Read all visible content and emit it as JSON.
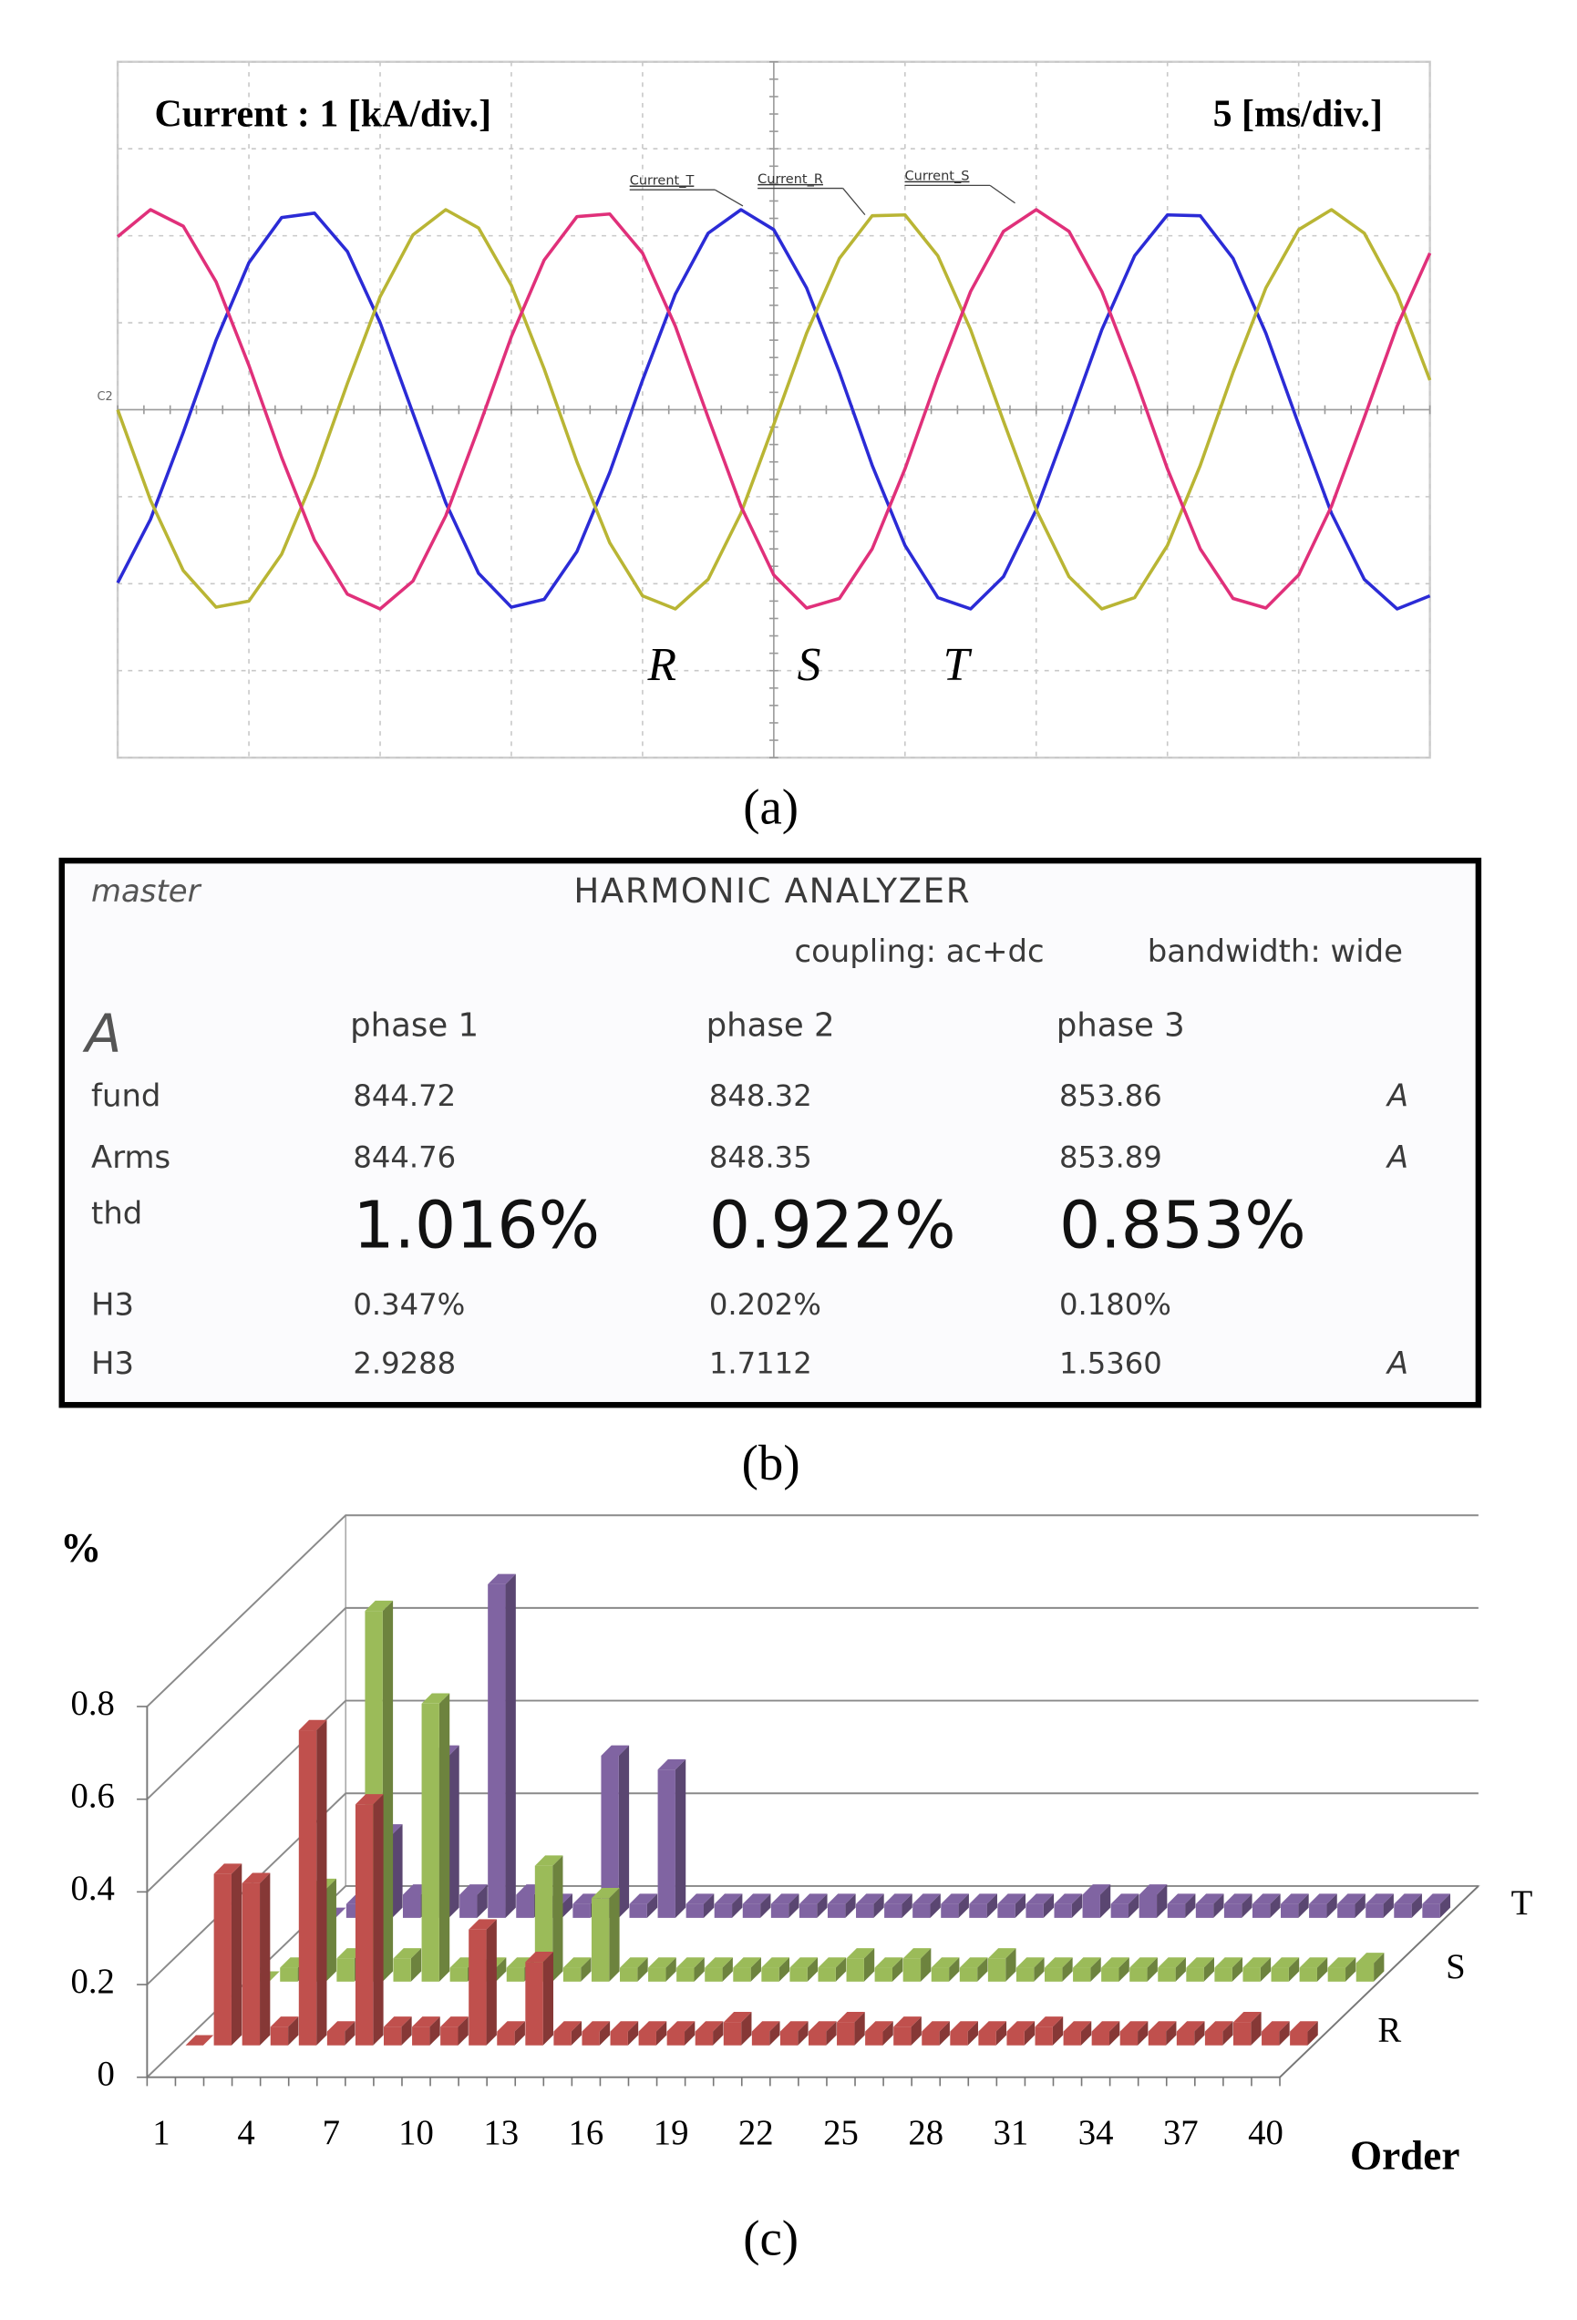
{
  "chart_data": [
    {
      "type": "line",
      "title": "Current : 1 [kA/div.]",
      "subtitle": "5 [ms/div.]",
      "channel_label": "C2",
      "annotations": [
        "R",
        "S",
        "T"
      ],
      "x": [
        0,
        1.25,
        2.5,
        3.75,
        5,
        6.25,
        7.5,
        8.75,
        10,
        11.25,
        12.5,
        13.75,
        15,
        16.25,
        17.5,
        18.75,
        20,
        21.25,
        22.5,
        23.75,
        25,
        26.25,
        27.5,
        28.75,
        30,
        31.25,
        32.5,
        33.75,
        35,
        36.25,
        37.5,
        38.75,
        40,
        41.25,
        42.5,
        43.75,
        45,
        46.25,
        47.5,
        48.75,
        50
      ],
      "series": [
        {
          "name": "Current_T",
          "color": "#2b2bd6",
          "values": [
            -1.99,
            -1.26,
            -0.26,
            0.8,
            1.69,
            2.21,
            2.26,
            1.82,
            1.0,
            -0.04,
            -1.07,
            -1.88,
            -2.27,
            -2.18,
            -1.63,
            -0.72,
            0.34,
            1.33,
            2.03,
            2.3,
            2.07,
            1.4,
            0.43,
            -0.64,
            -1.56,
            -2.16,
            -2.29,
            -1.92,
            -1.15,
            -0.13,
            0.92,
            1.77,
            2.24,
            2.23,
            1.74,
            0.88,
            -0.17,
            -1.19,
            -1.95,
            -2.29,
            -2.14
          ]
        },
        {
          "name": "Current_R",
          "color": "#b9b534",
          "values": [
            0.0,
            -1.04,
            -1.85,
            -2.27,
            -2.2,
            -1.66,
            -0.76,
            0.3,
            1.3,
            2.01,
            2.3,
            2.09,
            1.43,
            0.47,
            -0.6,
            -1.53,
            -2.14,
            -2.29,
            -1.95,
            -1.19,
            -0.17,
            0.88,
            1.74,
            2.23,
            2.24,
            1.77,
            0.92,
            -0.13,
            -1.15,
            -1.92,
            -2.29,
            -2.16,
            -1.56,
            -0.64,
            0.43,
            1.4,
            2.07,
            2.3,
            2.03,
            1.33,
            0.34
          ]
        },
        {
          "name": "Current_S",
          "color": "#e0307a",
          "values": [
            1.99,
            2.3,
            2.11,
            1.47,
            0.51,
            -0.55,
            -1.5,
            -2.12,
            -2.29,
            -1.97,
            -1.22,
            -0.21,
            0.84,
            1.72,
            2.22,
            2.25,
            1.8,
            0.96,
            -0.09,
            -1.11,
            -1.9,
            -2.28,
            -2.17,
            -1.6,
            -0.68,
            0.38,
            1.36,
            2.05,
            2.3,
            2.05,
            1.36,
            0.38,
            -0.68,
            -1.6,
            -2.17,
            -2.28,
            -1.9,
            -1.11,
            -0.09,
            0.96,
            1.8
          ]
        }
      ],
      "xlim": [
        0,
        50
      ],
      "ylim": [
        -4,
        4
      ],
      "xticks": [
        0,
        5,
        10,
        15,
        20,
        25,
        30,
        35,
        40,
        45,
        50
      ],
      "yticks": [
        -4,
        -3,
        -2,
        -1,
        0,
        1,
        2,
        3,
        4
      ],
      "grid": true
    },
    {
      "type": "bar3d",
      "y_label": "%",
      "x_label": "Order",
      "categories": [
        1,
        null,
        null,
        4,
        null,
        null,
        7,
        null,
        null,
        10,
        null,
        null,
        13,
        null,
        null,
        16,
        null,
        null,
        19,
        null,
        null,
        22,
        null,
        null,
        25,
        null,
        null,
        28,
        null,
        null,
        31,
        null,
        null,
        34,
        null,
        null,
        37,
        null,
        null,
        40
      ],
      "series": [
        {
          "name": "R",
          "color": "#c0504d",
          "values": [
            0,
            0.37,
            0.35,
            0.04,
            0.68,
            0.03,
            0.52,
            0.04,
            0.04,
            0.04,
            0.25,
            0.03,
            0.18,
            0.03,
            0.03,
            0.03,
            0.03,
            0.03,
            0.03,
            0.05,
            0.03,
            0.03,
            0.03,
            0.05,
            0.03,
            0.04,
            0.03,
            0.03,
            0.03,
            0.03,
            0.04,
            0.03,
            0.03,
            0.03,
            0.03,
            0.03,
            0.03,
            0.05,
            0.03,
            0.03
          ]
        },
        {
          "name": "S",
          "color": "#9bbb59",
          "values": [
            0,
            0.03,
            0.2,
            0.05,
            0.8,
            0.05,
            0.6,
            0.03,
            0.03,
            0.03,
            0.25,
            0.03,
            0.18,
            0.03,
            0.03,
            0.03,
            0.03,
            0.03,
            0.03,
            0.03,
            0.03,
            0.05,
            0.03,
            0.05,
            0.03,
            0.03,
            0.05,
            0.03,
            0.03,
            0.03,
            0.03,
            0.03,
            0.03,
            0.03,
            0.03,
            0.03,
            0.03,
            0.03,
            0.03,
            0.04
          ]
        },
        {
          "name": "T",
          "color": "#8064a2",
          "values": [
            0,
            0.03,
            0.18,
            0.05,
            0.35,
            0.05,
            0.72,
            0.05,
            0.03,
            0.03,
            0.35,
            0.03,
            0.32,
            0.03,
            0.03,
            0.03,
            0.03,
            0.03,
            0.03,
            0.03,
            0.03,
            0.03,
            0.03,
            0.03,
            0.03,
            0.03,
            0.03,
            0.05,
            0.03,
            0.05,
            0.03,
            0.03,
            0.03,
            0.03,
            0.03,
            0.03,
            0.03,
            0.03,
            0.03,
            0.03
          ]
        }
      ],
      "ylim": [
        0,
        0.8
      ],
      "yticks": [
        0,
        0.2,
        0.4,
        0.6,
        0.8
      ],
      "grid": true
    }
  ],
  "table": {
    "header": {
      "mode": "master",
      "title": "HARMONIC ANALYZER",
      "coupling": "coupling: ac+dc",
      "bandwidth": "bandwidth: wide",
      "unit": "A"
    },
    "columns": [
      "phase 1",
      "phase 2",
      "phase 3"
    ],
    "rows": [
      {
        "label": "fund",
        "cells": [
          "844.72",
          "848.32",
          "853.86"
        ],
        "unit": "A"
      },
      {
        "label": "Arms",
        "cells": [
          "844.76",
          "848.35",
          "853.89"
        ],
        "unit": "A"
      },
      {
        "label": "thd",
        "cells": [
          "1.016%",
          "0.922%",
          "0.853%"
        ]
      },
      {
        "label": "H3",
        "cells": [
          "0.347%",
          "0.202%",
          "0.180%"
        ]
      },
      {
        "label": "H3",
        "cells": [
          "2.9288",
          "1.7112",
          "1.5360"
        ],
        "unit": "A"
      }
    ]
  },
  "captions": [
    "(a)",
    "(b)",
    "(c)"
  ]
}
